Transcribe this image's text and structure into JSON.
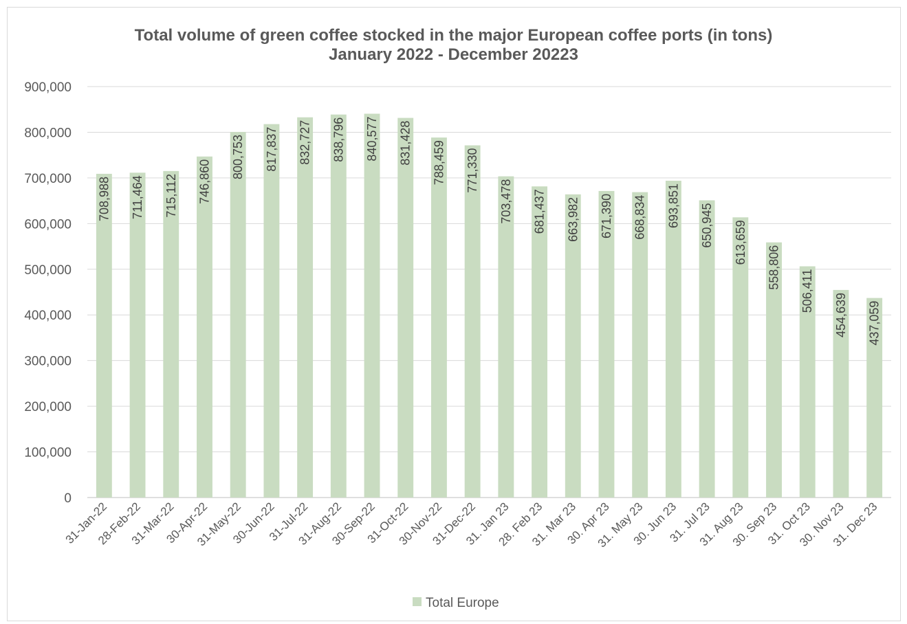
{
  "chart_data": {
    "type": "bar",
    "title": "Total volume of green coffee stocked in the major European coffee ports (in tons)",
    "subtitle": "January 2022 - December 20223",
    "xlabel": "",
    "ylabel": "",
    "ylim": [
      0,
      900000
    ],
    "yticks": [
      "0",
      "100,000",
      "200,000",
      "300,000",
      "400,000",
      "500,000",
      "600,000",
      "700,000",
      "800,000",
      "900,000"
    ],
    "ytick_values": [
      0,
      100000,
      200000,
      300000,
      400000,
      500000,
      600000,
      700000,
      800000,
      900000
    ],
    "grid": true,
    "legend_position": "bottom",
    "categories": [
      "31-Jan-22",
      "28-Feb-22",
      "31-Mar-22",
      "30-Apr-22",
      "31-May-22",
      "30-Jun-22",
      "31-Jul-22",
      "31-Aug-22",
      "30-Sep-22",
      "31-Oct-22",
      "30-Nov-22",
      "31-Dec-22",
      "31. Jan 23",
      "28. Feb 23",
      "31. Mar 23",
      "30. Apr 23",
      "31. May 23",
      "30. Jun 23",
      "31. Jul 23",
      "31. Aug 23",
      "30. Sep 23",
      "31. Oct 23",
      "30. Nov 23",
      "31. Dec 23"
    ],
    "series": [
      {
        "name": "Total Europe",
        "color": "#c9dcc1",
        "values": [
          708988,
          711464,
          715112,
          746860,
          800753,
          817837,
          832727,
          838796,
          840577,
          831428,
          788459,
          771330,
          703478,
          681437,
          663982,
          671390,
          668834,
          693851,
          650945,
          613659,
          558806,
          506411,
          454639,
          437059
        ],
        "labels": [
          "708,988",
          "711,464",
          "715,112",
          "746,860",
          "800,753",
          "817,837",
          "832,727",
          "838,796",
          "840,577",
          "831,428",
          "788,459",
          "771,330",
          "703,478",
          "681,437",
          "663,982",
          "671,390",
          "668,834",
          "693,851",
          "650,945",
          "613,659",
          "558,806",
          "506,411",
          "454,639",
          "437,059"
        ]
      }
    ]
  }
}
